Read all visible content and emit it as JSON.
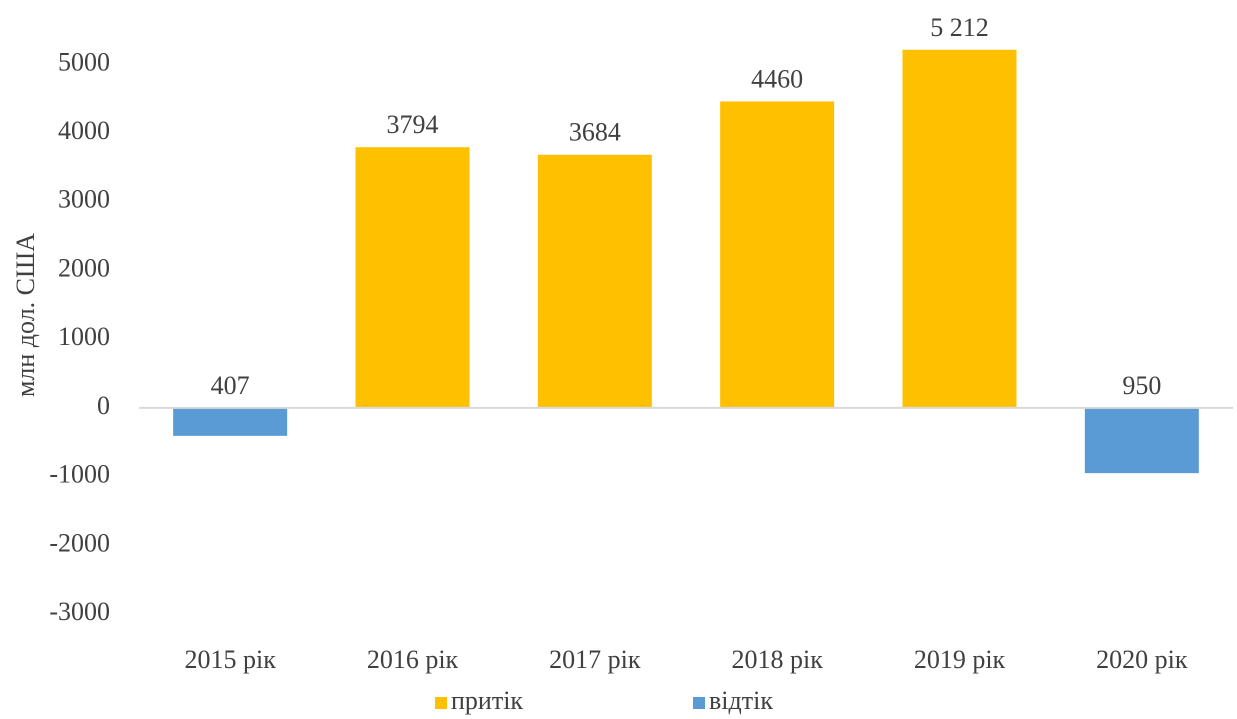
{
  "chart_data": {
    "type": "bar",
    "y_label": "млн дол. США",
    "categories": [
      "2015 рік",
      "2016 рік",
      "2017 рік",
      "2018 рік",
      "2019 рік",
      "2020 рік"
    ],
    "series": [
      {
        "name": "притік",
        "color": "#FFC000",
        "values": [
          null,
          3794,
          3684,
          4460,
          5212,
          null
        ],
        "value_labels": [
          null,
          "3794",
          "3684",
          "4460",
          "5 212",
          null
        ]
      },
      {
        "name": "відтік",
        "color": "#5B9BD5",
        "values": [
          -407,
          null,
          null,
          null,
          null,
          -950
        ],
        "value_labels": [
          "407",
          null,
          null,
          null,
          null,
          "950"
        ]
      }
    ],
    "ylim": [
      -3000,
      5500
    ],
    "yticks": [
      -3000,
      -2000,
      -1000,
      0,
      1000,
      2000,
      3000,
      4000,
      5000
    ],
    "grid": false,
    "legend": "bottom"
  }
}
